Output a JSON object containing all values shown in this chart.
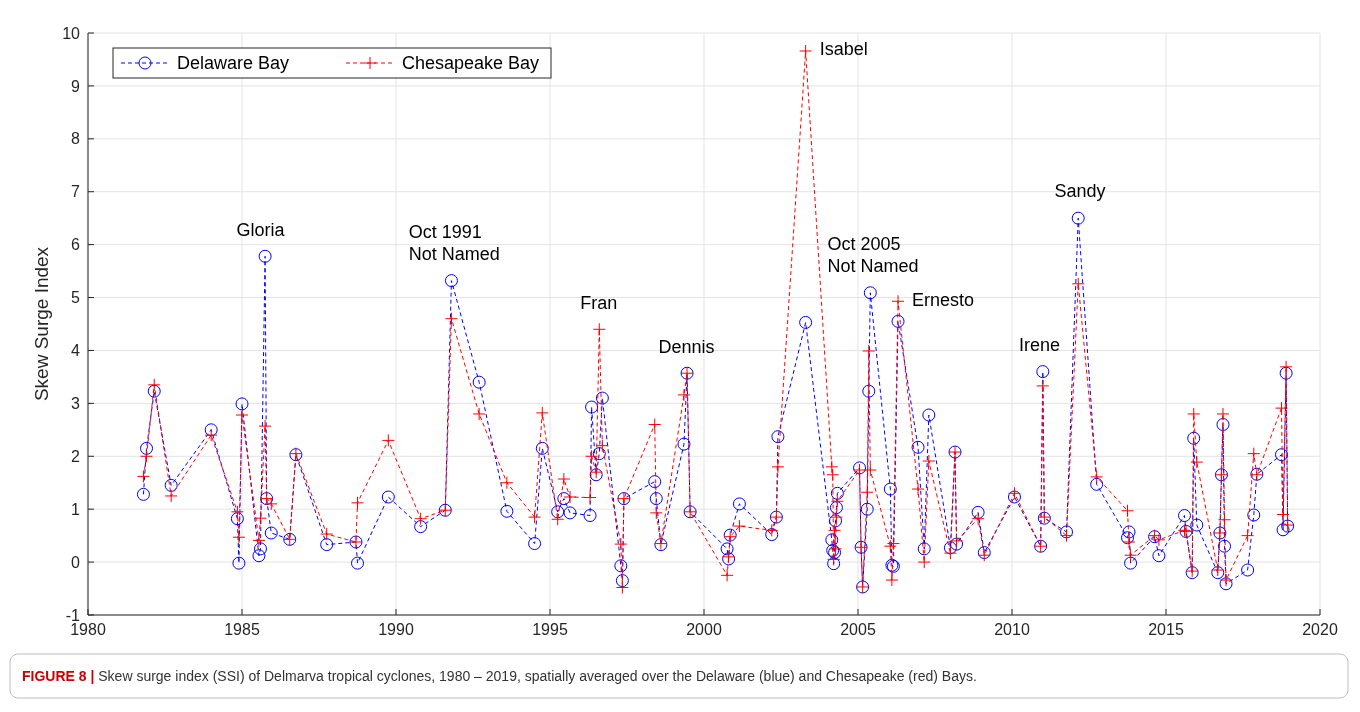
{
  "chart_data": {
    "type": "line",
    "ylabel": "Skew Surge Index",
    "xlim": [
      1980,
      2020
    ],
    "xticks": [
      1980,
      1985,
      1990,
      1995,
      2000,
      2005,
      2010,
      2015,
      2020
    ],
    "ylim": [
      -1,
      10
    ],
    "yticks": [
      -1,
      0,
      1,
      2,
      3,
      4,
      5,
      6,
      7,
      8,
      9,
      10
    ],
    "grid": true,
    "legend": "top left",
    "line_style": "dashed",
    "x": [
      1981.8,
      1981.9,
      1982.15,
      1982.7,
      1984.0,
      1984.85,
      1984.9,
      1985.0,
      1985.55,
      1985.6,
      1985.75,
      1985.8,
      1985.95,
      1986.55,
      1986.75,
      1987.75,
      1988.7,
      1988.75,
      1989.75,
      1990.8,
      1991.6,
      1991.8,
      1992.7,
      1993.6,
      1994.5,
      1994.75,
      1995.25,
      1995.45,
      1995.65,
      1996.3,
      1996.35,
      1996.5,
      1996.6,
      1996.7,
      1997.3,
      1997.35,
      1997.4,
      1998.4,
      1998.45,
      1998.6,
      1999.35,
      1999.45,
      1999.55,
      2000.75,
      2000.8,
      2000.85,
      2001.15,
      2002.2,
      2002.35,
      2002.4,
      2003.3,
      2004.15,
      2004.18,
      2004.21,
      2004.24,
      2004.27,
      2004.3,
      2004.33,
      2005.05,
      2005.1,
      2005.15,
      2005.3,
      2005.35,
      2005.4,
      2006.05,
      2006.1,
      2006.15,
      2006.3,
      2006.95,
      2007.15,
      2007.3,
      2008.0,
      2008.15,
      2008.2,
      2008.9,
      2009.1,
      2010.08,
      2010.93,
      2011.0,
      2011.05,
      2011.77,
      2012.15,
      2012.75,
      2013.75,
      2013.8,
      2013.85,
      2014.63,
      2014.77,
      2015.6,
      2015.65,
      2015.85,
      2015.9,
      2016.0,
      2016.68,
      2016.75,
      2016.8,
      2016.85,
      2016.9,
      2016.95,
      2017.65,
      2017.85,
      2017.95,
      2018.75,
      2018.8,
      2018.9,
      2018.95
    ],
    "series": [
      {
        "name": "Delaware Bay",
        "color": "#0000ff",
        "marker": "circle",
        "values": [
          1.28,
          2.15,
          3.23,
          1.45,
          2.5,
          0.82,
          -0.02,
          2.99,
          0.12,
          0.25,
          5.78,
          1.2,
          0.55,
          0.43,
          2.03,
          0.33,
          0.38,
          -0.02,
          1.23,
          0.67,
          0.98,
          5.32,
          3.4,
          0.96,
          0.35,
          2.15,
          0.95,
          1.2,
          0.93,
          0.88,
          2.93,
          1.65,
          2.05,
          3.1,
          -0.07,
          -0.35,
          1.2,
          1.52,
          1.2,
          0.33,
          2.23,
          3.57,
          0.95,
          0.25,
          0.06,
          0.51,
          1.1,
          0.52,
          0.85,
          2.37,
          4.53,
          0.42,
          0.22,
          -0.03,
          0.18,
          0.78,
          1.03,
          1.3,
          1.78,
          0.28,
          -0.47,
          1.0,
          3.23,
          5.09,
          1.38,
          -0.06,
          -0.08,
          4.55,
          2.17,
          0.25,
          2.78,
          0.27,
          2.08,
          0.34,
          0.94,
          0.18,
          1.23,
          0.3,
          3.6,
          0.83,
          0.57,
          6.5,
          1.47,
          0.46,
          0.57,
          -0.02,
          0.48,
          0.12,
          0.88,
          0.58,
          -0.2,
          2.34,
          0.7,
          -0.2,
          0.55,
          1.65,
          2.6,
          0.3,
          -0.41,
          -0.15,
          0.89,
          1.66,
          2.03,
          0.61,
          3.57,
          0.68
        ]
      },
      {
        "name": "Chesapeake Bay",
        "color": "#ff0000",
        "marker": "cross",
        "values": [
          1.62,
          2.0,
          3.35,
          1.25,
          2.4,
          0.95,
          0.47,
          2.78,
          0.41,
          0.83,
          2.57,
          1.2,
          1.1,
          0.43,
          2.05,
          0.53,
          0.38,
          1.12,
          2.3,
          0.82,
          0.98,
          4.6,
          2.8,
          1.5,
          0.85,
          2.82,
          0.81,
          1.57,
          1.23,
          1.22,
          2.0,
          1.7,
          4.4,
          2.2,
          0.34,
          -0.48,
          1.2,
          2.6,
          0.93,
          0.35,
          3.16,
          3.57,
          0.95,
          -0.25,
          0.1,
          0.48,
          0.68,
          0.6,
          0.85,
          1.8,
          9.66,
          1.8,
          1.65,
          0.05,
          0.6,
          0.25,
          0.85,
          1.15,
          1.74,
          0.28,
          -0.47,
          1.32,
          3.99,
          1.74,
          0.3,
          -0.34,
          0.35,
          4.93,
          1.38,
          0.0,
          1.91,
          0.17,
          2.08,
          0.4,
          0.82,
          0.13,
          1.3,
          0.3,
          3.33,
          0.85,
          0.5,
          5.26,
          1.61,
          0.97,
          0.38,
          0.13,
          0.5,
          0.42,
          0.6,
          0.58,
          -0.17,
          2.8,
          1.89,
          -0.15,
          0.55,
          1.65,
          2.8,
          0.8,
          -0.34,
          0.5,
          2.05,
          1.65,
          2.91,
          0.9,
          3.69,
          0.7
        ]
      }
    ],
    "annotations": [
      {
        "text": "Gloria",
        "x": 1985.75,
        "y": 5.78
      },
      {
        "text": "Oct 1991\nNot Named",
        "x": 1991.8,
        "y": 5.32
      },
      {
        "text": "Fran",
        "x": 1996.6,
        "y": 4.4
      },
      {
        "text": "Dennis",
        "x": 1999.45,
        "y": 3.57
      },
      {
        "text": "Isabel",
        "x": 2003.3,
        "y": 9.66
      },
      {
        "text": "Oct 2005\nNot Named",
        "x": 2005.4,
        "y": 5.09
      },
      {
        "text": "Ernesto",
        "x": 2006.3,
        "y": 4.93
      },
      {
        "text": "Irene",
        "x": 2011.0,
        "y": 3.6
      },
      {
        "text": "Sandy",
        "x": 2012.15,
        "y": 6.5
      },
      "FIGURE 8 | Skew surge index (SSI) of Delmarva tropical cyclones, 1980 – 2019, spatially averaged over the Delaware (blue) and Chesapeake (red) Bays."
    ]
  }
}
